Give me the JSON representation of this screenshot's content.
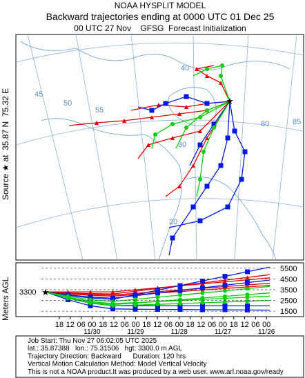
{
  "header": {
    "title": "NOAA HYSPLIT MODEL",
    "subtitle": "Backward trajectories ending at 0000 UTC 01 Dec 25",
    "run": "00 UTC 27 Nov    GFSG  Forecast Initialization"
  },
  "source_label": "Source ★ at  35.87 N  75.32 E",
  "map": {
    "lat_labels": [
      "40",
      "30",
      "20"
    ],
    "lon_labels": [
      "45",
      "50",
      "55",
      "80",
      "85"
    ]
  },
  "vertical": {
    "ylabel": "Meters AGL",
    "source_height": 3300,
    "ylim": [
      1000,
      6000
    ],
    "yticks": [
      5500,
      4500,
      3500,
      2500,
      1500
    ],
    "hours": [
      "18",
      "12",
      "06",
      "00",
      "18",
      "12",
      "06",
      "00",
      "18",
      "12",
      "06",
      "00",
      "18",
      "12",
      "06",
      "00",
      "18",
      "12",
      "06",
      "00"
    ],
    "dates": [
      "11/30",
      "11/29",
      "11/28",
      "11/27",
      "11/26"
    ]
  },
  "footer": [
    "Job Start: Thu Nov 27 06:02:05 UTC 2025",
    "lat.: 35.87388   lon.: 75.31506   hgt: 3300.0 m AGL",
    "Trajectory Direction: Backward      Duration: 120 hrs",
    "Vertical Motion Calculation Method: Model Vertical Velocity",
    "This is not a NOAA product.It was produced by a web user. www.arl.noaa.gov/ready"
  ]
}
